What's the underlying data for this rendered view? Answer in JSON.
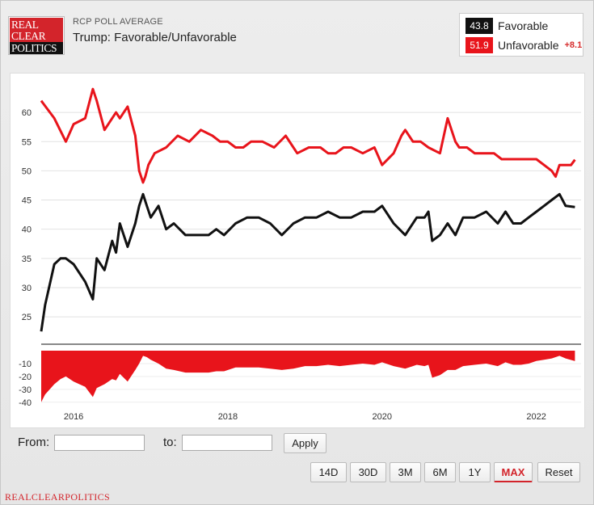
{
  "header": {
    "logo_lines": [
      "REAL",
      "CLEAR",
      "POLITICS"
    ],
    "subtitle": "RCP POLL AVERAGE",
    "title": "Trump: Favorable/Unfavorable"
  },
  "legend": {
    "favorable": {
      "value": "43.8",
      "label": "Favorable",
      "color": "#111111"
    },
    "unfavorable": {
      "value": "51.9",
      "label": "Unfavorable",
      "color": "#e8141b"
    },
    "spread": "+8.1"
  },
  "chart_data": [
    {
      "type": "line",
      "title": "",
      "xlabel": "",
      "ylabel": "",
      "x_tick_labels": [
        "2016",
        "2018",
        "2020",
        "2022"
      ],
      "x_ticks": [
        2016,
        2018,
        2020,
        2022
      ],
      "xlim": [
        2015.58,
        2022.58
      ],
      "ylim": [
        21,
        65
      ],
      "y_ticks": [
        25,
        30,
        35,
        40,
        45,
        50,
        55,
        60
      ],
      "grid": true,
      "series": [
        {
          "name": "Unfavorable",
          "color": "#e8141b",
          "x": [
            2015.58,
            2015.75,
            2015.9,
            2016.0,
            2016.15,
            2016.25,
            2016.3,
            2016.4,
            2016.55,
            2016.6,
            2016.7,
            2016.8,
            2016.85,
            2016.9,
            2016.93,
            2016.97,
            2017.05,
            2017.2,
            2017.35,
            2017.5,
            2017.65,
            2017.8,
            2017.9,
            2018.0,
            2018.1,
            2018.2,
            2018.3,
            2018.45,
            2018.6,
            2018.75,
            2018.9,
            2019.05,
            2019.2,
            2019.3,
            2019.4,
            2019.5,
            2019.6,
            2019.75,
            2019.9,
            2020.0,
            2020.15,
            2020.25,
            2020.3,
            2020.4,
            2020.5,
            2020.6,
            2020.75,
            2020.85,
            2020.95,
            2021.0,
            2021.1,
            2021.2,
            2021.3,
            2021.45,
            2021.55,
            2021.7,
            2021.85,
            2022.0,
            2022.1,
            2022.2,
            2022.25,
            2022.3,
            2022.35,
            2022.45,
            2022.5
          ],
          "values": [
            62,
            59,
            55,
            58,
            59,
            64,
            62,
            57,
            60,
            59,
            61,
            56,
            50,
            48,
            49,
            51,
            53,
            54,
            56,
            55,
            57,
            56,
            55,
            55,
            54,
            54,
            55,
            55,
            54,
            56,
            53,
            54,
            54,
            53,
            53,
            54,
            54,
            53,
            54,
            51,
            53,
            56,
            57,
            55,
            55,
            54,
            53,
            59,
            55,
            54,
            54,
            53,
            53,
            53,
            52,
            52,
            52,
            52,
            51,
            50,
            49,
            51,
            51,
            51,
            51.9
          ]
        },
        {
          "name": "Favorable",
          "color": "#111111",
          "x": [
            2015.58,
            2015.63,
            2015.75,
            2015.83,
            2015.9,
            2016.0,
            2016.15,
            2016.25,
            2016.3,
            2016.4,
            2016.5,
            2016.55,
            2016.6,
            2016.7,
            2016.8,
            2016.85,
            2016.9,
            2016.95,
            2017.0,
            2017.1,
            2017.2,
            2017.3,
            2017.45,
            2017.6,
            2017.75,
            2017.85,
            2017.95,
            2018.1,
            2018.25,
            2018.4,
            2018.55,
            2018.7,
            2018.85,
            2019.0,
            2019.15,
            2019.3,
            2019.45,
            2019.6,
            2019.75,
            2019.9,
            2020.0,
            2020.15,
            2020.3,
            2020.45,
            2020.55,
            2020.6,
            2020.65,
            2020.75,
            2020.85,
            2020.95,
            2021.05,
            2021.2,
            2021.35,
            2021.5,
            2021.6,
            2021.7,
            2021.8,
            2021.9,
            2022.0,
            2022.1,
            2022.2,
            2022.3,
            2022.38,
            2022.5
          ],
          "values": [
            22.5,
            27,
            34,
            35,
            35,
            34,
            31,
            28,
            35,
            33,
            38,
            36,
            41,
            37,
            41,
            44,
            46,
            44,
            42,
            44,
            40,
            41,
            39,
            39,
            39,
            40,
            39,
            41,
            42,
            42,
            41,
            39,
            41,
            42,
            42,
            43,
            42,
            42,
            43,
            43,
            44,
            41,
            39,
            42,
            42,
            43,
            38,
            39,
            41,
            39,
            42,
            42,
            43,
            41,
            43,
            41,
            41,
            42,
            43,
            44,
            45,
            46,
            44,
            43.8
          ]
        }
      ]
    },
    {
      "type": "area",
      "title": "",
      "xlim": [
        2015.58,
        2022.58
      ],
      "ylim": [
        -42,
        0
      ],
      "y_ticks": [
        -10,
        -20,
        -30,
        -40
      ],
      "series": [
        {
          "name": "Spread",
          "color": "#e8141b",
          "x": [
            2015.58,
            2015.63,
            2015.75,
            2015.83,
            2015.9,
            2016.0,
            2016.15,
            2016.25,
            2016.3,
            2016.4,
            2016.5,
            2016.55,
            2016.6,
            2016.7,
            2016.8,
            2016.85,
            2016.9,
            2016.95,
            2017.0,
            2017.1,
            2017.2,
            2017.3,
            2017.45,
            2017.6,
            2017.75,
            2017.85,
            2017.95,
            2018.1,
            2018.25,
            2018.4,
            2018.55,
            2018.7,
            2018.85,
            2019.0,
            2019.15,
            2019.3,
            2019.45,
            2019.6,
            2019.75,
            2019.9,
            2020.0,
            2020.15,
            2020.3,
            2020.45,
            2020.55,
            2020.6,
            2020.65,
            2020.75,
            2020.85,
            2020.95,
            2021.05,
            2021.2,
            2021.35,
            2021.5,
            2021.6,
            2021.7,
            2021.8,
            2021.9,
            2022.0,
            2022.1,
            2022.2,
            2022.3,
            2022.38,
            2022.5
          ],
          "values": [
            -40,
            -34,
            -26,
            -22,
            -20,
            -24,
            -28,
            -36,
            -29,
            -26,
            -22,
            -23,
            -18,
            -24,
            -15,
            -10,
            -4,
            -5,
            -7,
            -10,
            -14,
            -15,
            -17,
            -17,
            -17,
            -16,
            -16,
            -13,
            -13,
            -13,
            -14,
            -15,
            -14,
            -12,
            -12,
            -11,
            -12,
            -11,
            -10,
            -11,
            -9,
            -12,
            -14,
            -11,
            -12,
            -11,
            -21,
            -19,
            -15,
            -15,
            -12,
            -11,
            -10,
            -12,
            -9,
            -11,
            -11,
            -10,
            -8,
            -7,
            -6,
            -4,
            -6,
            -8.1
          ]
        }
      ]
    }
  ],
  "controls": {
    "from_label": "From:",
    "to_label": "to:",
    "from_value": "",
    "to_value": "",
    "apply_label": "Apply",
    "ranges": [
      "14D",
      "30D",
      "3M",
      "6M",
      "1Y",
      "MAX",
      "Reset"
    ],
    "active_range": "MAX"
  },
  "footer": "REALCLEARPOLITICS"
}
